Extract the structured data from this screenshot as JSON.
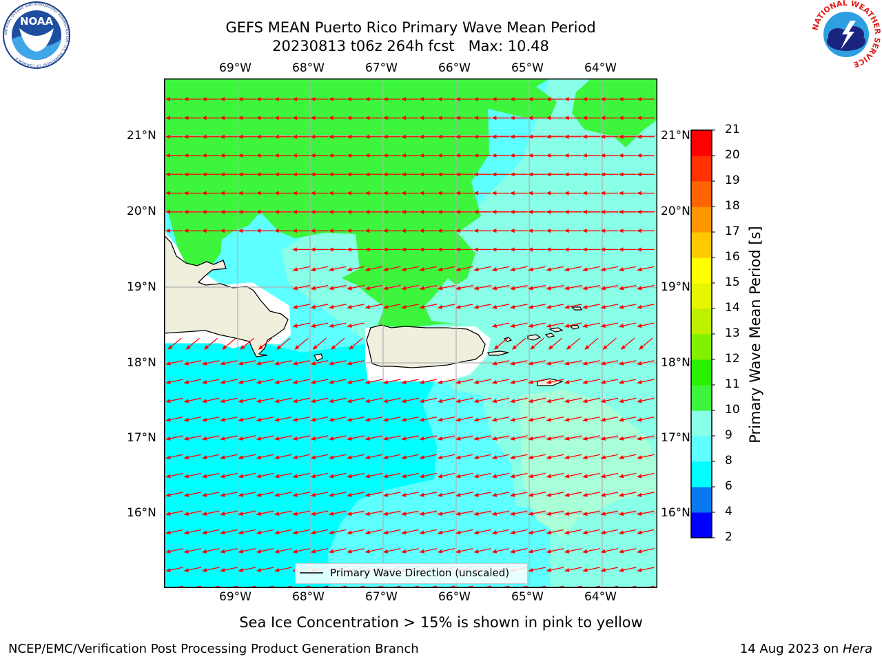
{
  "header": {
    "title_line1": "GEFS MEAN Puerto Rico Primary Wave Mean Period",
    "title_line2": "20230813 t06z 264h fcst   Max: 10.48"
  },
  "logos": {
    "noaa_text": "NOAA",
    "noaa_ring": "NATIONAL OCEANIC AND ATMOSPHERIC ADMINISTRATION · U.S. DEPARTMENT OF COMMERCE",
    "nws_ring": "NATIONAL WEATHER SERVICE"
  },
  "map": {
    "lon_labels": [
      "69°W",
      "68°W",
      "67°W",
      "66°W",
      "65°W",
      "64°W"
    ],
    "lat_labels": [
      "21°N",
      "20°N",
      "19°N",
      "18°N",
      "17°N",
      "16°N"
    ],
    "legend_label": "Primary Wave Direction (unscaled)",
    "colors": {
      "land": "#f0eedd",
      "arrow": "#ff0000",
      "grid": "#b0b0b0"
    }
  },
  "colorbar": {
    "title": "Primary Wave Mean Period [s]",
    "ticks": [
      "2",
      "4",
      "6",
      "8",
      "9",
      "10",
      "11",
      "12",
      "13",
      "14",
      "15",
      "16",
      "17",
      "18",
      "19",
      "20",
      "21"
    ],
    "colors": [
      "#0000ff",
      "#0a78f0",
      "#00ffff",
      "#5effff",
      "#88ffe6",
      "#3cf53c",
      "#28f000",
      "#82f000",
      "#bef000",
      "#e6f500",
      "#ffff00",
      "#ffc800",
      "#ff9600",
      "#ff6400",
      "#ff3200",
      "#ff0000"
    ]
  },
  "footer": {
    "note": "Sea Ice Concentration > 15% is shown in pink to yellow",
    "left": "NCEP/EMC/Verification Post Processing Product Generation Branch",
    "right_prefix": "14 Aug 2023 on ",
    "right_host": "Hera"
  }
}
